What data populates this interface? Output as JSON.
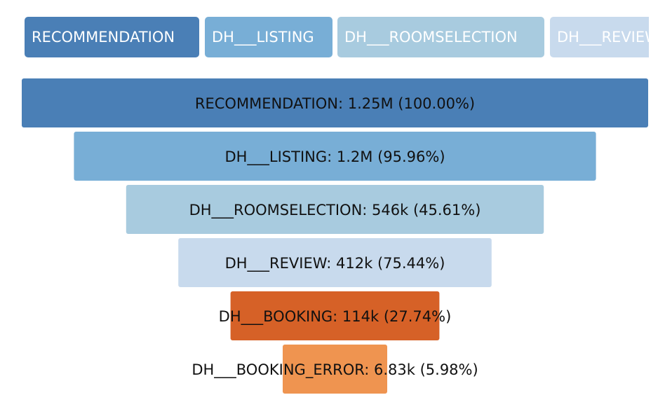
{
  "chart_data": {
    "type": "funnel",
    "title": "",
    "stages": [
      {
        "name": "RECOMMENDATION",
        "display": "1.25M",
        "value": 1250000,
        "percent": "100.00%",
        "color": "#4a7fb6"
      },
      {
        "name": "DH___LISTING",
        "display": "1.2M",
        "value": 1200000,
        "percent": "95.96%",
        "color": "#78aed6"
      },
      {
        "name": "DH___ROOMSELECTION",
        "display": "546k",
        "value": 546000,
        "percent": "45.61%",
        "color": "#a8cbdf"
      },
      {
        "name": "DH___REVIEW",
        "display": "412k",
        "value": 412000,
        "percent": "75.44%",
        "color": "#c8daed"
      },
      {
        "name": "DH___BOOKING",
        "display": "114k",
        "value": 114000,
        "percent": "27.74%",
        "color": "#d66127"
      },
      {
        "name": "DH___BOOKING_ERROR",
        "display": "6.83k",
        "value": 6830,
        "percent": "5.98%",
        "color": "#ef9450"
      }
    ]
  },
  "legend": {
    "items": [
      {
        "label": "RECOMMENDATION",
        "color": "#4a7fb6"
      },
      {
        "label": "DH___LISTING",
        "color": "#78aed6"
      },
      {
        "label": "DH___ROOMSELECTION",
        "color": "#a8cbdf"
      },
      {
        "label": "DH___REVIEW",
        "color": "#c8daed"
      }
    ]
  }
}
